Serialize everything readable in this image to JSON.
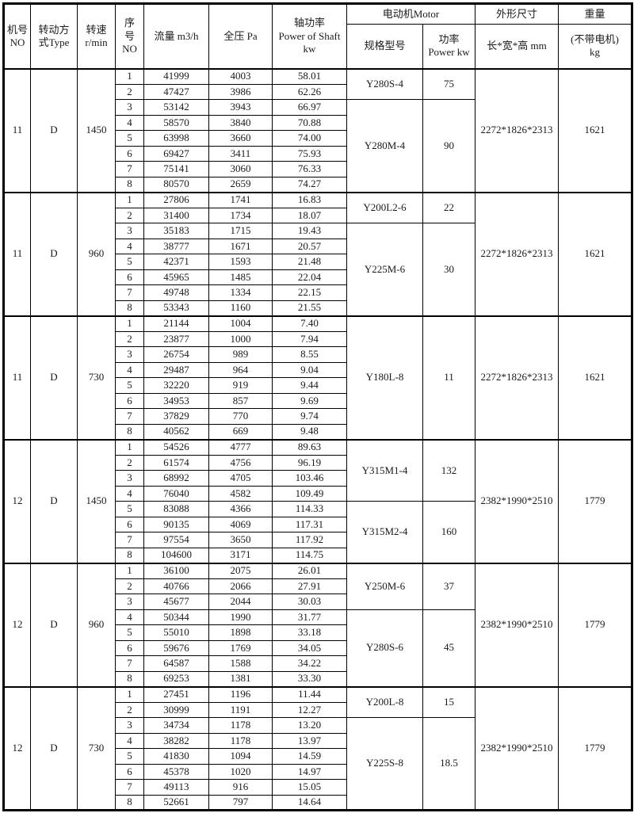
{
  "table": {
    "headers": {
      "machine_no": "机号\nNO",
      "type": "转动方\n式Type",
      "speed": "转速\nr/min",
      "seq_no": "序\n号\nNO",
      "flow": "流量  m3/h",
      "pressure": "全压  Pa",
      "shaft_power": "轴功率\nPower of Shaft\nkw",
      "motor_group": "电动机Motor",
      "motor_model": "规格型号",
      "motor_power": "功率\nPower kw",
      "dimensions_group": "外形尺寸",
      "dimensions_sub": "长*宽*高  mm",
      "weight_group": "重量",
      "weight_sub": "(不带电机)\nkg"
    },
    "blocks": [
      {
        "machine_no": "11",
        "type": "D",
        "speed": "1450",
        "rows": [
          [
            "1",
            "41999",
            "4003",
            "58.01"
          ],
          [
            "2",
            "47427",
            "3986",
            "62.26"
          ],
          [
            "3",
            "53142",
            "3943",
            "66.97"
          ],
          [
            "4",
            "58570",
            "3840",
            "70.88"
          ],
          [
            "5",
            "63998",
            "3660",
            "74.00"
          ],
          [
            "6",
            "69427",
            "3411",
            "75.93"
          ],
          [
            "7",
            "75141",
            "3060",
            "76.33"
          ],
          [
            "8",
            "80570",
            "2659",
            "74.27"
          ]
        ],
        "motors": [
          {
            "model": "Y280S-4",
            "power": "75",
            "span": 2
          },
          {
            "model": "Y280M-4",
            "power": "90",
            "span": 6
          }
        ],
        "dimensions": "2272*1826*2313",
        "weight": "1621"
      },
      {
        "machine_no": "11",
        "type": "D",
        "speed": "960",
        "rows": [
          [
            "1",
            "27806",
            "1741",
            "16.83"
          ],
          [
            "2",
            "31400",
            "1734",
            "18.07"
          ],
          [
            "3",
            "35183",
            "1715",
            "19.43"
          ],
          [
            "4",
            "38777",
            "1671",
            "20.57"
          ],
          [
            "5",
            "42371",
            "1593",
            "21.48"
          ],
          [
            "6",
            "45965",
            "1485",
            "22.04"
          ],
          [
            "7",
            "49748",
            "1334",
            "22.15"
          ],
          [
            "8",
            "53343",
            "1160",
            "21.55"
          ]
        ],
        "motors": [
          {
            "model": "Y200L2-6",
            "power": "22",
            "span": 2
          },
          {
            "model": "Y225M-6",
            "power": "30",
            "span": 6
          }
        ],
        "dimensions": "2272*1826*2313",
        "weight": "1621"
      },
      {
        "machine_no": "11",
        "type": "D",
        "speed": "730",
        "rows": [
          [
            "1",
            "21144",
            "1004",
            "7.40"
          ],
          [
            "2",
            "23877",
            "1000",
            "7.94"
          ],
          [
            "3",
            "26754",
            "989",
            "8.55"
          ],
          [
            "4",
            "29487",
            "964",
            "9.04"
          ],
          [
            "5",
            "32220",
            "919",
            "9.44"
          ],
          [
            "6",
            "34953",
            "857",
            "9.69"
          ],
          [
            "7",
            "37829",
            "770",
            "9.74"
          ],
          [
            "8",
            "40562",
            "669",
            "9.48"
          ]
        ],
        "motors": [
          {
            "model": "Y180L-8",
            "power": "11",
            "span": 8
          }
        ],
        "dimensions": "2272*1826*2313",
        "weight": "1621"
      },
      {
        "machine_no": "12",
        "type": "D",
        "speed": "1450",
        "rows": [
          [
            "1",
            "54526",
            "4777",
            "89.63"
          ],
          [
            "2",
            "61574",
            "4756",
            "96.19"
          ],
          [
            "3",
            "68992",
            "4705",
            "103.46"
          ],
          [
            "4",
            "76040",
            "4582",
            "109.49"
          ],
          [
            "5",
            "83088",
            "4366",
            "114.33"
          ],
          [
            "6",
            "90135",
            "4069",
            "117.31"
          ],
          [
            "7",
            "97554",
            "3650",
            "117.92"
          ],
          [
            "8",
            "104600",
            "3171",
            "114.75"
          ]
        ],
        "motors": [
          {
            "model": "Y315M1-4",
            "power": "132",
            "span": 4
          },
          {
            "model": "Y315M2-4",
            "power": "160",
            "span": 4
          }
        ],
        "dimensions": "2382*1990*2510",
        "weight": "1779"
      },
      {
        "machine_no": "12",
        "type": "D",
        "speed": "960",
        "rows": [
          [
            "1",
            "36100",
            "2075",
            "26.01"
          ],
          [
            "2",
            "40766",
            "2066",
            "27.91"
          ],
          [
            "3",
            "45677",
            "2044",
            "30.03"
          ],
          [
            "4",
            "50344",
            "1990",
            "31.77"
          ],
          [
            "5",
            "55010",
            "1898",
            "33.18"
          ],
          [
            "6",
            "59676",
            "1769",
            "34.05"
          ],
          [
            "7",
            "64587",
            "1588",
            "34.22"
          ],
          [
            "8",
            "69253",
            "1381",
            "33.30"
          ]
        ],
        "motors": [
          {
            "model": "Y250M-6",
            "power": "37",
            "span": 3
          },
          {
            "model": "Y280S-6",
            "power": "45",
            "span": 5
          }
        ],
        "dimensions": "2382*1990*2510",
        "weight": "1779"
      },
      {
        "machine_no": "12",
        "type": "D",
        "speed": "730",
        "rows": [
          [
            "1",
            "27451",
            "1196",
            "11.44"
          ],
          [
            "2",
            "30999",
            "1191",
            "12.27"
          ],
          [
            "3",
            "34734",
            "1178",
            "13.20"
          ],
          [
            "4",
            "38282",
            "1178",
            "13.97"
          ],
          [
            "5",
            "41830",
            "1094",
            "14.59"
          ],
          [
            "6",
            "45378",
            "1020",
            "14.97"
          ],
          [
            "7",
            "49113",
            "916",
            "15.05"
          ],
          [
            "8",
            "52661",
            "797",
            "14.64"
          ]
        ],
        "motors": [
          {
            "model": "Y200L-8",
            "power": "15",
            "span": 2
          },
          {
            "model": "Y225S-8",
            "power": "18.5",
            "span": 6
          }
        ],
        "dimensions": "2382*1990*2510",
        "weight": "1779"
      }
    ]
  }
}
